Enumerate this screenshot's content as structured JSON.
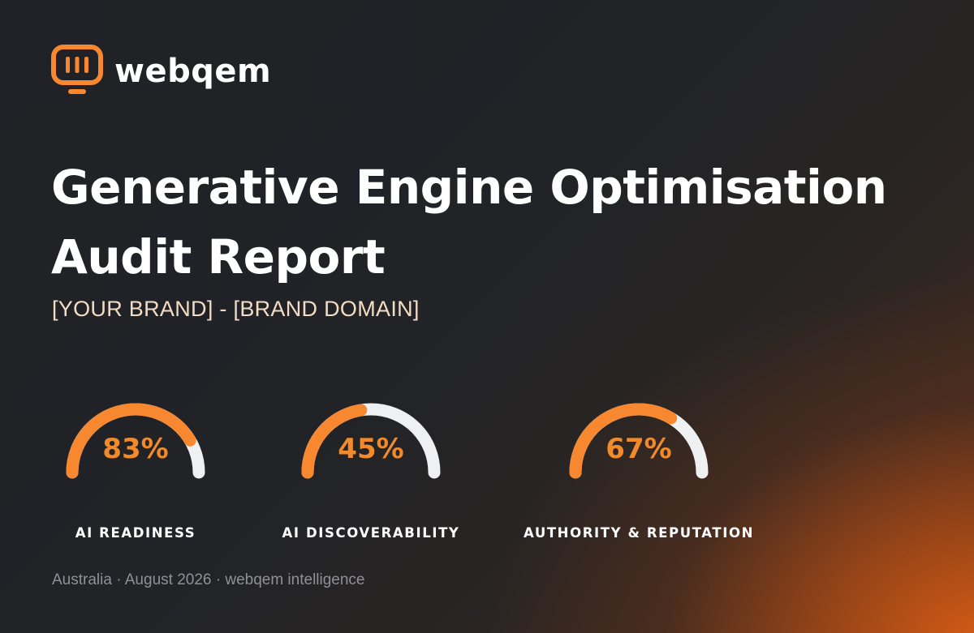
{
  "brand": {
    "name": "webqem",
    "accent_color": "#f7882f",
    "icon": "monitor-logo-icon"
  },
  "title_line1": "Generative Engine Optimisation",
  "title_line2": "Audit Report",
  "subtitle": "[YOUR BRAND] - [BRAND DOMAIN]",
  "gauges": [
    {
      "value": 83,
      "display": "83%",
      "label": "AI READINESS"
    },
    {
      "value": 45,
      "display": "45%",
      "label": "AI DISCOVERABILITY"
    },
    {
      "value": 67,
      "display": "67%",
      "label": "AUTHORITY & REPUTATION"
    }
  ],
  "colors": {
    "gauge_fill": "#f7882f",
    "gauge_track": "#eef0f2",
    "value_text": "#f08a2a"
  },
  "footer": "Australia · August 2026 · webqem intelligence"
}
